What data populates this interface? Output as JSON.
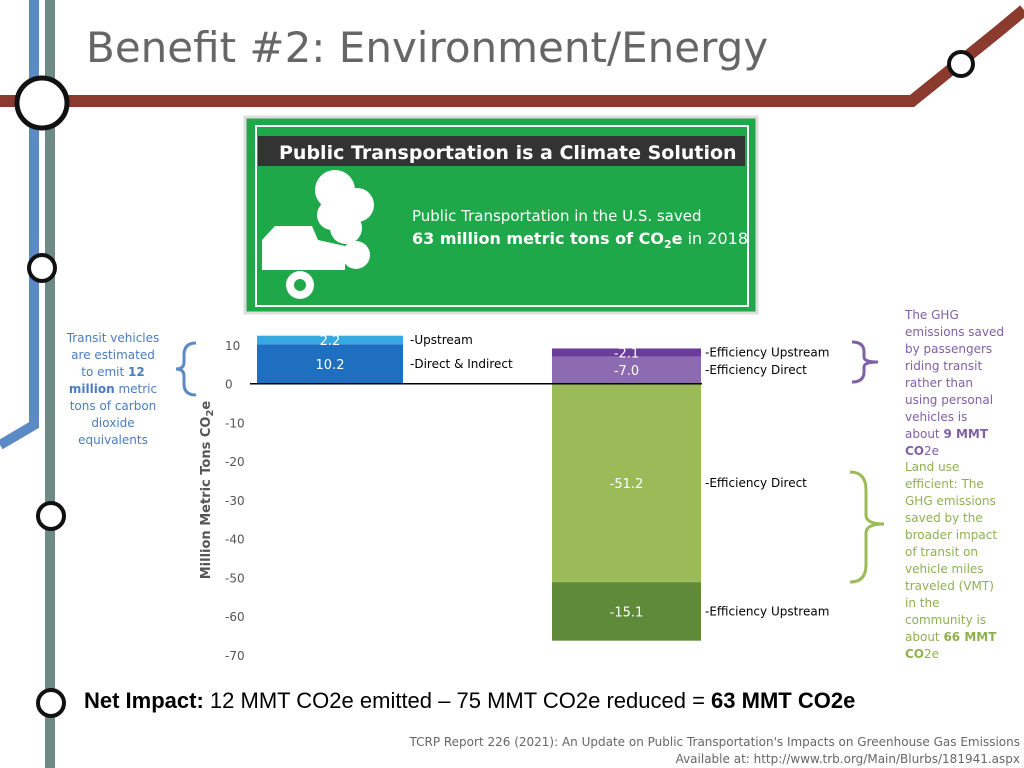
{
  "title": "Benefit #2: Environment/Energy",
  "banner": {
    "heading": "Public Transportation is a Climate Solution",
    "line1": "Public Transportation in the U.S. saved",
    "line2_bold": "63 million metric tons of CO",
    "line2_sub": "2",
    "line2_e": "e",
    "line2_rest": " in 2018"
  },
  "left_note": {
    "before": "Transit vehicles are estimated to emit ",
    "bold": "12 million",
    "after": " metric tons of carbon dioxide equivalents"
  },
  "right_note_top": {
    "text": "The GHG emissions saved by passengers riding transit rather than using personal vehicles is about ",
    "bold": "9 MMT CO",
    "after": "2e"
  },
  "right_note_bottom": {
    "text": "Land use efficient: The GHG emissions saved by the broader impact of transit on vehicle miles traveled (VMT) in the community is about ",
    "bold": "66 MMT CO",
    "after": "2e"
  },
  "net_impact": {
    "label": "Net Impact:",
    "text": " 12 MMT CO2e emitted – 75 MMT CO2e reduced = ",
    "result": "63 MMT CO2e"
  },
  "source": {
    "line1": "TCRP Report 226 (2021): An Update on Public Transportation's Impacts on Greenhouse Gas Emissions",
    "line2": "Available at: http://www.trb.org/Main/Blurbs/181941.aspx"
  },
  "chart_data": {
    "type": "stacked_bar",
    "y_label": "Million Metric Tons CO",
    "y_label_sub": "2",
    "y_label_end": "e",
    "categories": [
      null,
      null
    ],
    "ylim": [
      -70,
      12.5
    ],
    "yticks": [
      10,
      0,
      -10,
      -20,
      -30,
      -40,
      -50,
      -60,
      -70
    ],
    "series": [
      {
        "name": "-Direct & Indirect",
        "color": "#1f6fc1",
        "stack": "up",
        "values": [
          10.2,
          null
        ]
      },
      {
        "name": "-Upstream",
        "color": "#36a9e1",
        "stack": "up",
        "values": [
          2.2,
          null
        ]
      },
      {
        "name": "-Efficiency Direct",
        "color": "#8c6bb1",
        "stack": "up",
        "values": [
          null,
          -7.0
        ],
        "value_labels": [
          null,
          "-7.0"
        ]
      },
      {
        "name": "-Efficiency Upstream",
        "color": "#6a3d9a",
        "stack": "up",
        "values": [
          null,
          -2.1
        ]
      },
      {
        "name": "-Efficiency Direct",
        "color": "#9bbb59",
        "stack": "down",
        "values": [
          null,
          -51.2
        ]
      },
      {
        "name": "-Efficiency Upstream",
        "color": "#5e8a3a",
        "stack": "down",
        "values": [
          null,
          -15.1
        ]
      }
    ]
  }
}
